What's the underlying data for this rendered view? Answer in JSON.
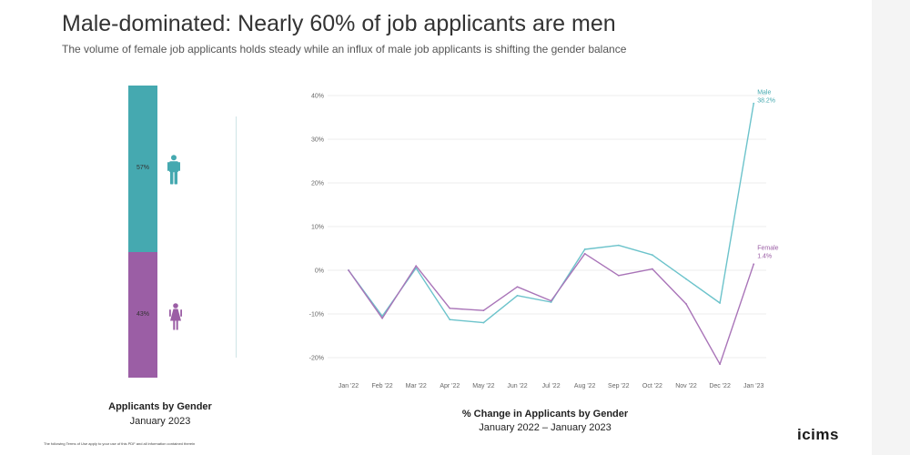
{
  "header": {
    "title": "Male-dominated: Nearly 60% of job applicants are men",
    "subtitle": "The volume of female job applicants holds steady while an influx of male job applicants is shifting the gender balance"
  },
  "colors": {
    "male": "#45a9b0",
    "female": "#9b5ea5",
    "male_line": "#6cc3cb",
    "female_line": "#a974b8"
  },
  "chart_data": [
    {
      "type": "bar",
      "orientation": "stacked-vertical",
      "categories": [
        "Male",
        "Female"
      ],
      "values": [
        57,
        43
      ],
      "labels": [
        "57%",
        "43%"
      ],
      "icons": [
        "male-person-icon",
        "female-person-icon"
      ],
      "title": "Applicants by Gender",
      "subtitle": "January 2023"
    },
    {
      "type": "line",
      "title": "% Change in Applicants by Gender",
      "subtitle": "January 2022 – January 2023",
      "categories": [
        "Jan '22",
        "Feb '22",
        "Mar '22",
        "Apr '22",
        "May '22",
        "Jun '22",
        "Jul '22",
        "Aug '22",
        "Sep '22",
        "Oct '22",
        "Nov '22",
        "Dec '22",
        "Jan '23"
      ],
      "ylim": [
        -20,
        40
      ],
      "yticks": [
        -20,
        -10,
        0,
        10,
        20,
        30,
        40
      ],
      "ytick_labels": [
        "-20%",
        "-10%",
        "0%",
        "10%",
        "20%",
        "30%",
        "40%"
      ],
      "grid": true,
      "series": [
        {
          "name": "Male",
          "end_label": "38.2%",
          "values": [
            0,
            -10.5,
            0.5,
            -11.3,
            -12,
            -5.8,
            -7.3,
            4.8,
            5.7,
            3.5,
            -2,
            -7.5,
            38.2
          ]
        },
        {
          "name": "Female",
          "end_label": "1.4%",
          "values": [
            0,
            -11,
            1,
            -8.7,
            -9.2,
            -3.8,
            -7,
            3.8,
            -1.2,
            0.3,
            -7.7,
            -21.5,
            1.4
          ]
        }
      ]
    }
  ],
  "footer": {
    "legal_text": "The following Terms of Use apply to your use of this PDF and all information contained therein",
    "logo": "icims"
  }
}
